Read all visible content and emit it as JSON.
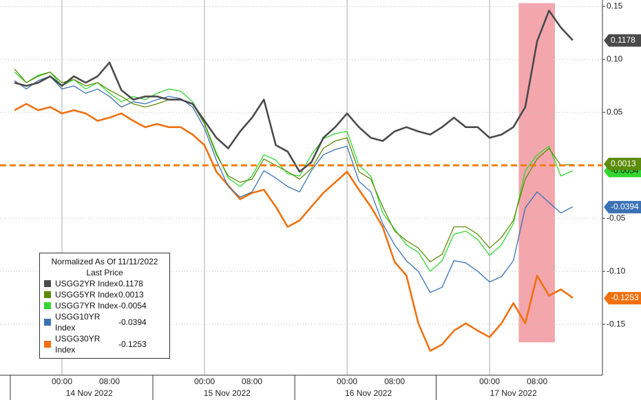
{
  "chart_data": {
    "type": "line",
    "legend_title": "Normalized As Of 11/11/2022",
    "legend_subtitle": "Last Price",
    "x": [
      -8,
      -6,
      -4,
      -2,
      0,
      2,
      4,
      6,
      8,
      10,
      12,
      14,
      16,
      18,
      20,
      22,
      24,
      26,
      28,
      30,
      32,
      34,
      36,
      38,
      40,
      42,
      44,
      46,
      48,
      50,
      52,
      54,
      56,
      58,
      60,
      62,
      64,
      66,
      68,
      70,
      72,
      74,
      76,
      78,
      80,
      82,
      84,
      86
    ],
    "xlim": [
      -10.435,
      91
    ],
    "xticks": [
      {
        "value": 0,
        "label": "00:00"
      },
      {
        "value": 8,
        "label": "08:00"
      },
      {
        "value": 24,
        "label": "00:00"
      },
      {
        "value": 32,
        "label": "08:00"
      },
      {
        "value": 48,
        "label": "00:00"
      },
      {
        "value": 56,
        "label": "08:00"
      },
      {
        "value": 72,
        "label": "00:00"
      },
      {
        "value": 80,
        "label": "08:00"
      }
    ],
    "day_labels": [
      {
        "value": 4.6,
        "label": "14 Nov 2022"
      },
      {
        "value": 27.8,
        "label": "15 Nov 2022"
      },
      {
        "value": 51.6,
        "label": "16 Nov 2022"
      },
      {
        "value": 76,
        "label": "17 Nov 2022"
      }
    ],
    "day_separators": [
      -8.7,
      15.3,
      39.2,
      63
    ],
    "ylim": [
      -0.198,
      0.156
    ],
    "yticks": [
      0.15,
      {
        "value": 0.1,
        "label": "0.10"
      },
      0.05,
      -0.05,
      {
        "value": -0.1,
        "label": "-0.10"
      },
      -0.15
    ],
    "hline": 0,
    "hline_color": "#f07d10",
    "highlight": {
      "x": [
        76.9,
        83
      ],
      "y": [
        -0.167,
        0.153
      ],
      "color": "#f4a6ad"
    },
    "series": [
      {
        "name": "USGG2YR Index",
        "color": "#4a4a4a",
        "last": 0.1178,
        "values": [
          0.078,
          0.075,
          0.078,
          0.084,
          0.075,
          0.084,
          0.078,
          0.084,
          0.097,
          0.071,
          0.062,
          0.065,
          0.065,
          0.062,
          0.062,
          0.058,
          0.042,
          0.026,
          0.016,
          0.032,
          0.045,
          0.062,
          0.019,
          0.013,
          -0.006,
          0.003,
          0.026,
          0.036,
          0.049,
          0.036,
          0.026,
          0.023,
          0.032,
          0.036,
          0.032,
          0.029,
          0.036,
          0.045,
          0.036,
          0.036,
          0.026,
          0.029,
          0.036,
          0.055,
          0.117,
          0.146,
          0.13,
          0.118
        ]
      },
      {
        "name": "USGG5YR Index",
        "color": "#5c8c0a",
        "last": 0.0013,
        "values": [
          0.091,
          0.078,
          0.084,
          0.088,
          0.078,
          0.081,
          0.075,
          0.078,
          0.071,
          0.065,
          0.058,
          0.055,
          0.058,
          0.062,
          0.062,
          0.058,
          0.039,
          0.01,
          -0.01,
          -0.016,
          -0.013,
          0.006,
          0.0,
          -0.006,
          -0.013,
          -0.003,
          0.016,
          0.023,
          0.026,
          -0.006,
          -0.013,
          -0.039,
          -0.062,
          -0.071,
          -0.078,
          -0.091,
          -0.084,
          -0.058,
          -0.058,
          -0.065,
          -0.078,
          -0.068,
          -0.052,
          -0.013,
          0.006,
          0.016,
          0.0,
          0.001
        ]
      },
      {
        "name": "USGG7YR Index",
        "color": "#33d633",
        "last": -0.0054,
        "values": [
          0.088,
          0.078,
          0.085,
          0.088,
          0.075,
          0.081,
          0.072,
          0.078,
          0.068,
          0.06,
          0.065,
          0.062,
          0.068,
          0.072,
          0.07,
          0.06,
          0.04,
          0.012,
          -0.012,
          -0.02,
          -0.01,
          0.01,
          0.005,
          -0.008,
          -0.01,
          0.01,
          0.025,
          0.03,
          0.032,
          0.0,
          -0.01,
          -0.045,
          -0.06,
          -0.075,
          -0.082,
          -0.1,
          -0.09,
          -0.065,
          -0.062,
          -0.07,
          -0.085,
          -0.075,
          -0.055,
          -0.005,
          0.01,
          0.018,
          -0.01,
          -0.005
        ]
      },
      {
        "name": "USGG10YR Index",
        "color": "#3b72b5",
        "last": -0.0394,
        "values": [
          0.08,
          0.072,
          0.08,
          0.084,
          0.072,
          0.075,
          0.068,
          0.072,
          0.065,
          0.055,
          0.06,
          0.058,
          0.062,
          0.065,
          0.063,
          0.055,
          0.035,
          0.005,
          -0.02,
          -0.03,
          -0.025,
          -0.005,
          -0.012,
          -0.02,
          -0.025,
          -0.005,
          0.01,
          0.015,
          0.018,
          -0.015,
          -0.025,
          -0.055,
          -0.075,
          -0.09,
          -0.1,
          -0.12,
          -0.115,
          -0.09,
          -0.092,
          -0.1,
          -0.11,
          -0.105,
          -0.09,
          -0.04,
          -0.025,
          -0.035,
          -0.045,
          -0.039
        ]
      },
      {
        "name": "USGG30YR Index",
        "color": "#f07010",
        "last": -0.1253,
        "values": [
          0.052,
          0.058,
          0.052,
          0.055,
          0.049,
          0.052,
          0.049,
          0.042,
          0.045,
          0.049,
          0.042,
          0.036,
          0.039,
          0.036,
          0.036,
          0.029,
          0.019,
          -0.006,
          -0.019,
          -0.032,
          -0.026,
          -0.023,
          -0.039,
          -0.058,
          -0.052,
          -0.039,
          -0.026,
          -0.016,
          -0.006,
          -0.023,
          -0.039,
          -0.058,
          -0.091,
          -0.104,
          -0.149,
          -0.175,
          -0.169,
          -0.156,
          -0.149,
          -0.156,
          -0.162,
          -0.149,
          -0.13,
          -0.149,
          -0.104,
          -0.123,
          -0.117,
          -0.125
        ]
      }
    ]
  }
}
